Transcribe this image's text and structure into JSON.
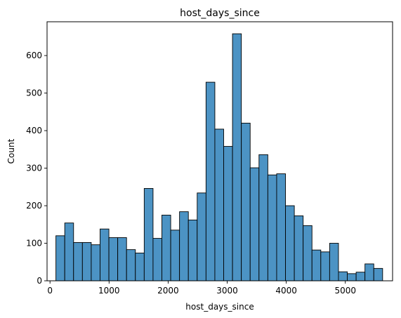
{
  "chart_data": {
    "type": "bar",
    "title": "host_days_since",
    "xlabel": "host_days_since",
    "ylabel": "Count",
    "xlim": [
      -50,
      5800
    ],
    "ylim": [
      0,
      690
    ],
    "xticks": [
      0,
      1000,
      2000,
      3000,
      4000,
      5000
    ],
    "yticks": [
      0,
      100,
      200,
      300,
      400,
      500,
      600
    ],
    "bin_width": 149.5,
    "bins_start": 100,
    "values": [
      120,
      154,
      102,
      102,
      96,
      138,
      115,
      115,
      83,
      74,
      246,
      113,
      175,
      135,
      184,
      162,
      234,
      529,
      404,
      358,
      658,
      420,
      301,
      336,
      282,
      285,
      200,
      173,
      147,
      82,
      77,
      100,
      24,
      19,
      23,
      45,
      33
    ],
    "bar_color": "#4c93c4",
    "edge_color": "#000000",
    "grid": false,
    "legend": "none"
  }
}
